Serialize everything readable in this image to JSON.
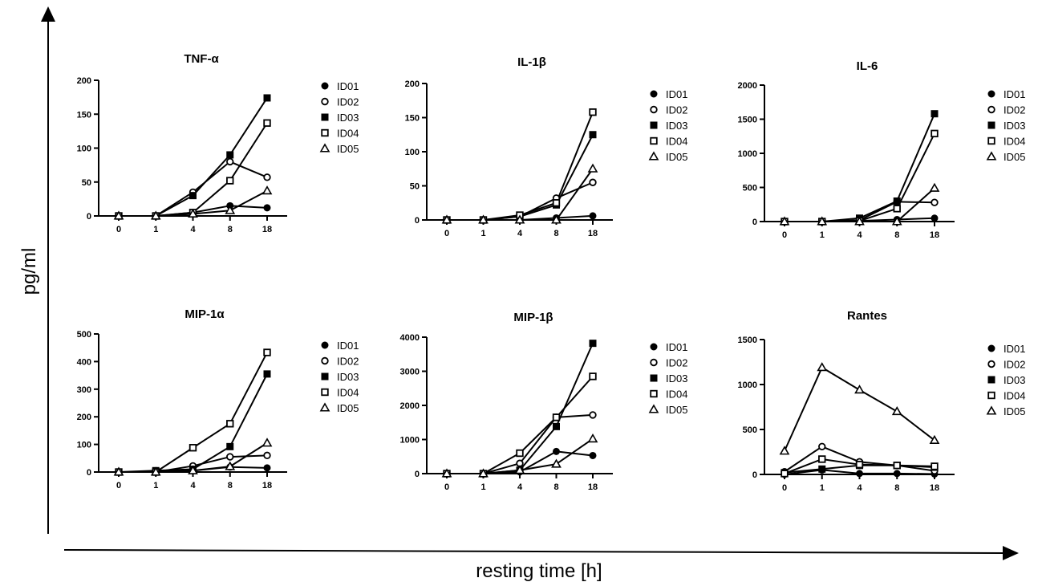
{
  "figure": {
    "ylabel": "pg/ml",
    "xlabel": "resting time [h]"
  },
  "chart_data": [
    {
      "type": "line",
      "title": "TNF-α",
      "categories": [
        "0",
        "1",
        "4",
        "8",
        "18"
      ],
      "yticks": [
        0,
        50,
        100,
        150,
        200
      ],
      "ylim": [
        0,
        200
      ],
      "series": [
        {
          "name": "ID01",
          "marker": "filled-circle",
          "values": [
            0,
            0,
            5,
            15,
            12
          ]
        },
        {
          "name": "ID02",
          "marker": "open-circle",
          "values": [
            0,
            0,
            35,
            80,
            57
          ]
        },
        {
          "name": "ID03",
          "marker": "filled-square",
          "values": [
            0,
            0,
            30,
            90,
            174
          ]
        },
        {
          "name": "ID04",
          "marker": "open-square",
          "values": [
            0,
            0,
            5,
            52,
            137
          ]
        },
        {
          "name": "ID05",
          "marker": "open-triangle",
          "values": [
            0,
            0,
            3,
            8,
            37
          ]
        }
      ]
    },
    {
      "type": "line",
      "title": "IL-1β",
      "categories": [
        "0",
        "1",
        "4",
        "8",
        "18"
      ],
      "yticks": [
        0,
        50,
        100,
        150,
        200
      ],
      "ylim": [
        0,
        200
      ],
      "series": [
        {
          "name": "ID01",
          "marker": "filled-circle",
          "values": [
            0,
            0,
            0,
            3,
            6
          ]
        },
        {
          "name": "ID02",
          "marker": "open-circle",
          "values": [
            0,
            0,
            5,
            32,
            55
          ]
        },
        {
          "name": "ID03",
          "marker": "filled-square",
          "values": [
            0,
            0,
            5,
            22,
            125
          ]
        },
        {
          "name": "ID04",
          "marker": "open-square",
          "values": [
            0,
            0,
            7,
            25,
            158
          ]
        },
        {
          "name": "ID05",
          "marker": "open-triangle",
          "values": [
            0,
            0,
            0,
            0,
            75
          ]
        }
      ]
    },
    {
      "type": "line",
      "title": "IL-6",
      "categories": [
        "0",
        "1",
        "4",
        "8",
        "18"
      ],
      "yticks": [
        0,
        500,
        1000,
        1500,
        2000
      ],
      "ylim": [
        0,
        2000
      ],
      "series": [
        {
          "name": "ID01",
          "marker": "filled-circle",
          "values": [
            0,
            0,
            10,
            30,
            50
          ]
        },
        {
          "name": "ID02",
          "marker": "open-circle",
          "values": [
            0,
            0,
            20,
            290,
            280
          ]
        },
        {
          "name": "ID03",
          "marker": "filled-square",
          "values": [
            0,
            0,
            50,
            300,
            1580
          ]
        },
        {
          "name": "ID04",
          "marker": "open-square",
          "values": [
            0,
            0,
            10,
            190,
            1290
          ]
        },
        {
          "name": "ID05",
          "marker": "open-triangle",
          "values": [
            0,
            0,
            0,
            0,
            490
          ]
        }
      ]
    },
    {
      "type": "line",
      "title": "MIP-1α",
      "categories": [
        "0",
        "1",
        "4",
        "8",
        "18"
      ],
      "yticks": [
        0,
        100,
        200,
        300,
        400,
        500
      ],
      "ylim": [
        0,
        500
      ],
      "series": [
        {
          "name": "ID01",
          "marker": "filled-circle",
          "values": [
            0,
            0,
            5,
            18,
            15
          ]
        },
        {
          "name": "ID02",
          "marker": "open-circle",
          "values": [
            0,
            0,
            22,
            55,
            60
          ]
        },
        {
          "name": "ID03",
          "marker": "filled-square",
          "values": [
            0,
            5,
            10,
            92,
            355
          ]
        },
        {
          "name": "ID04",
          "marker": "open-square",
          "values": [
            0,
            0,
            88,
            175,
            433
          ]
        },
        {
          "name": "ID05",
          "marker": "open-triangle",
          "values": [
            0,
            0,
            5,
            20,
            105
          ]
        }
      ]
    },
    {
      "type": "line",
      "title": "MIP-1β",
      "categories": [
        "0",
        "1",
        "4",
        "8",
        "18"
      ],
      "yticks": [
        0,
        1000,
        2000,
        3000,
        4000
      ],
      "ylim": [
        0,
        4000
      ],
      "series": [
        {
          "name": "ID01",
          "marker": "filled-circle",
          "values": [
            0,
            0,
            50,
            650,
            530
          ]
        },
        {
          "name": "ID02",
          "marker": "open-circle",
          "values": [
            0,
            0,
            300,
            1650,
            1720
          ]
        },
        {
          "name": "ID03",
          "marker": "filled-square",
          "values": [
            0,
            0,
            100,
            1380,
            3820
          ]
        },
        {
          "name": "ID04",
          "marker": "open-square",
          "values": [
            0,
            0,
            600,
            1650,
            2850
          ]
        },
        {
          "name": "ID05",
          "marker": "open-triangle",
          "values": [
            0,
            0,
            100,
            280,
            1020
          ]
        }
      ]
    },
    {
      "type": "line",
      "title": "Rantes",
      "categories": [
        "0",
        "1",
        "4",
        "8",
        "18"
      ],
      "yticks": [
        0,
        500,
        1000,
        1500
      ],
      "ylim": [
        0,
        1500
      ],
      "series": [
        {
          "name": "ID01",
          "marker": "filled-circle",
          "values": [
            0,
            50,
            10,
            10,
            5
          ]
        },
        {
          "name": "ID02",
          "marker": "open-circle",
          "values": [
            30,
            310,
            140,
            100,
            40
          ]
        },
        {
          "name": "ID03",
          "marker": "filled-square",
          "values": [
            20,
            60,
            100,
            100,
            80
          ]
        },
        {
          "name": "ID04",
          "marker": "open-square",
          "values": [
            10,
            170,
            110,
            100,
            90
          ]
        },
        {
          "name": "ID05",
          "marker": "open-triangle",
          "values": [
            260,
            1190,
            940,
            700,
            380
          ]
        }
      ]
    }
  ]
}
